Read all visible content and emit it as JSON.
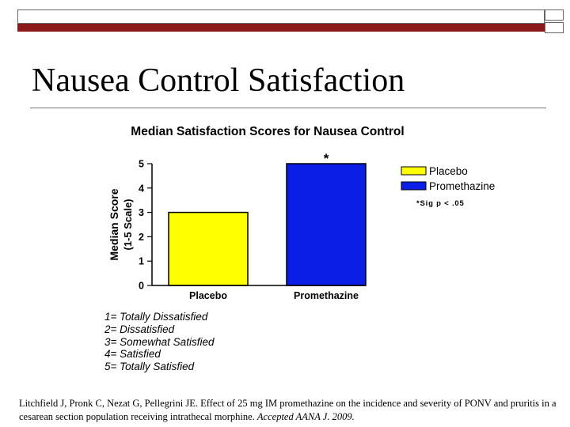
{
  "slide": {
    "title": "Nausea Control Satisfaction"
  },
  "chart_data": {
    "type": "bar",
    "title": "Median Satisfaction Scores for Nausea Control",
    "ylabel_line1": "Median Score",
    "ylabel_line2": "(1-5 Scale)",
    "categories": [
      "Placebo",
      "Promethazine"
    ],
    "values": [
      3,
      5
    ],
    "colors": [
      "#ffff00",
      "#0a1ee6"
    ],
    "ylim": [
      0,
      5
    ],
    "yticks": [
      "0",
      "1",
      "2",
      "3",
      "4",
      "5"
    ],
    "legend": {
      "placement": "right",
      "entries": [
        {
          "name": "Placebo",
          "color": "#ffff00"
        },
        {
          "name": "Promethazine",
          "color": "#0a1ee6"
        }
      ]
    },
    "annotations": {
      "significance_marker": "*",
      "significance_note": "*Sig p < .05"
    },
    "grid": false
  },
  "scale_key": [
    "1= Totally Dissatisfied",
    "2= Dissatisfied",
    "3= Somewhat Satisfied",
    "4= Satisfied",
    "5= Totally Satisfied"
  ],
  "citation": {
    "text": "Litchfield J, Pronk C, Nezat G, Pellegrini JE. Effect of 25 mg IM promethazine on the incidence and severity of PONV and pruritis in a cesarean section population receiving intrathecal morphine.",
    "journal": "Accepted AANA J. 2009."
  }
}
